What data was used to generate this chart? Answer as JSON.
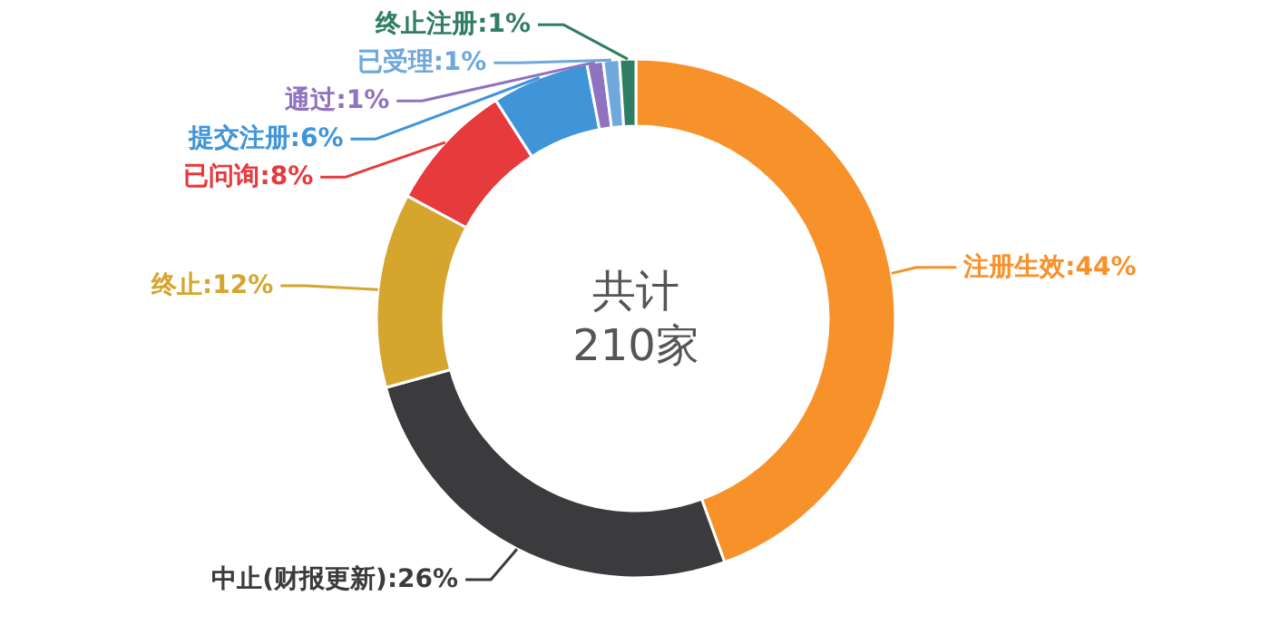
{
  "chart_data": {
    "type": "donut",
    "categories": [
      "注册生效",
      "中止(财报更新)",
      "终止",
      "已问询",
      "提交注册",
      "通过",
      "已受理",
      "终止注册"
    ],
    "values": [
      44,
      26,
      12,
      8,
      6,
      1,
      1,
      1
    ],
    "value_labels": [
      "44%",
      "26%",
      "12%",
      "8%",
      "6%",
      "1%",
      "1%",
      "1%"
    ],
    "colors": [
      "#f7922a",
      "#3b3b3e",
      "#d5a52e",
      "#e63a3c",
      "#3f95d8",
      "#8f72c0",
      "#6fa8dc",
      "#2f7d62"
    ],
    "annotations": [
      "共计",
      "210家"
    ]
  }
}
